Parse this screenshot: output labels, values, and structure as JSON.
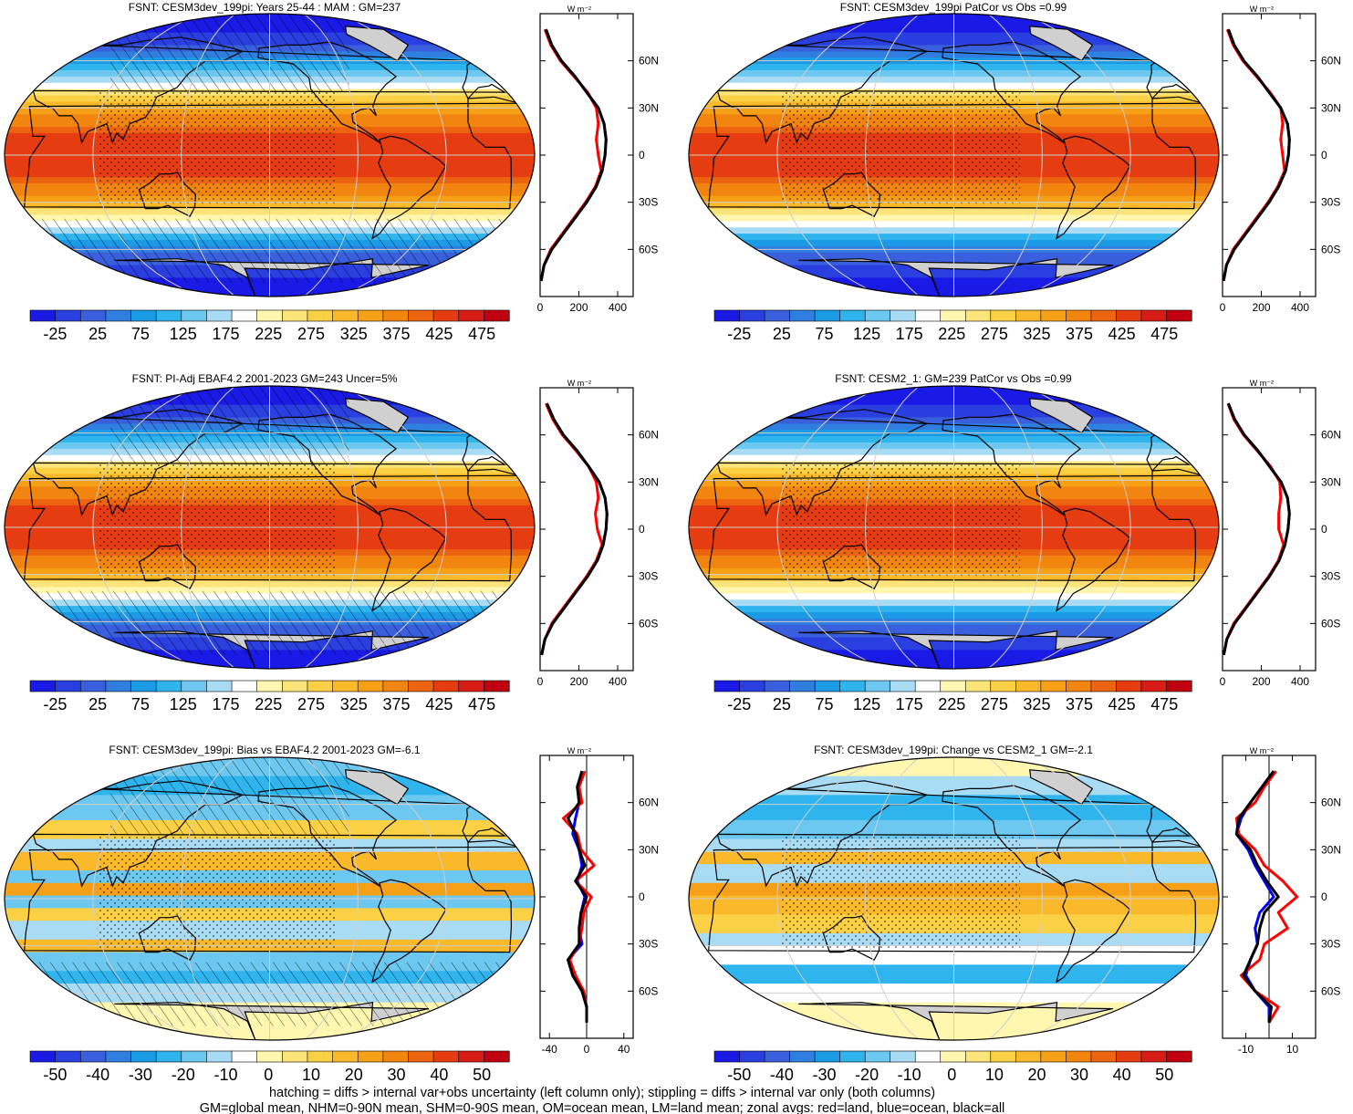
{
  "panels": [
    {
      "title": "FSNT: CESM3dev_199pi: Years 25-44 : MAM : GM=237",
      "colorbar_labels": [
        "-25",
        "25",
        "75",
        "125",
        "175",
        "225",
        "275",
        "325",
        "375",
        "425",
        "475"
      ],
      "colorbar_min": -50,
      "colorbar_max": 500,
      "hatching": true,
      "zonal": {
        "unit": "W m⁻²",
        "x_ticks": [
          "0",
          "200",
          "400"
        ],
        "x_values": [
          0,
          200,
          400
        ],
        "xlim": [
          0,
          480
        ],
        "y_labels": [
          "60N",
          "30N",
          "0",
          "30S",
          "60S"
        ]
      }
    },
    {
      "title": "FSNT: CESM3dev_199pi PatCor vs Obs =0.99",
      "colorbar_labels": [
        "-25",
        "25",
        "75",
        "125",
        "175",
        "225",
        "275",
        "325",
        "375",
        "425",
        "475"
      ],
      "colorbar_min": -50,
      "colorbar_max": 500,
      "hatching": false,
      "zonal": {
        "unit": "W m⁻²",
        "x_ticks": [
          "0",
          "200",
          "400"
        ],
        "x_values": [
          0,
          200,
          400
        ],
        "xlim": [
          0,
          480
        ],
        "y_labels": [
          "60N",
          "30N",
          "0",
          "30S",
          "60S"
        ]
      }
    },
    {
      "title": "FSNT: PI-Adj EBAF4.2 2001-2023 GM=243 Uncer=5%",
      "colorbar_labels": [
        "-25",
        "25",
        "75",
        "125",
        "175",
        "225",
        "275",
        "325",
        "375",
        "425",
        "475"
      ],
      "colorbar_min": -50,
      "colorbar_max": 500,
      "hatching": true,
      "zonal": {
        "unit": "W m⁻²",
        "x_ticks": [
          "0",
          "200",
          "400"
        ],
        "x_values": [
          0,
          200,
          400
        ],
        "xlim": [
          0,
          480
        ],
        "y_labels": [
          "60N",
          "30N",
          "0",
          "30S",
          "60S"
        ]
      }
    },
    {
      "title": "FSNT: CESM2_1: GM=239 PatCor vs Obs =0.99",
      "colorbar_labels": [
        "-25",
        "25",
        "75",
        "125",
        "175",
        "225",
        "275",
        "325",
        "375",
        "425",
        "475"
      ],
      "colorbar_min": -50,
      "colorbar_max": 500,
      "hatching": false,
      "zonal": {
        "unit": "W m⁻²",
        "x_ticks": [
          "0",
          "200",
          "400"
        ],
        "x_values": [
          0,
          200,
          400
        ],
        "xlim": [
          0,
          480
        ],
        "y_labels": [
          "60N",
          "30N",
          "0",
          "30S",
          "60S"
        ]
      }
    },
    {
      "title": "FSNT: CESM3dev_199pi: Bias vs EBAF4.2 2001-2023 GM=-6.1",
      "colorbar_labels": [
        "-50",
        "-40",
        "-30",
        "-20",
        "-10",
        "0",
        "10",
        "20",
        "30",
        "40",
        "50"
      ],
      "colorbar_min": -55,
      "colorbar_max": 55,
      "hatching": true,
      "zonal": {
        "unit": "W m⁻²",
        "x_ticks": [
          "-40",
          "0",
          "40"
        ],
        "x_values": [
          -40,
          0,
          40
        ],
        "xlim": [
          -50,
          50
        ],
        "y_labels": [
          "60N",
          "30N",
          "0",
          "30S",
          "60S"
        ]
      }
    },
    {
      "title": "FSNT: CESM3dev_199pi: Change vs CESM2_1 GM=-2.1",
      "colorbar_labels": [
        "-50",
        "-40",
        "-30",
        "-20",
        "-10",
        "0",
        "10",
        "20",
        "30",
        "40",
        "50"
      ],
      "colorbar_min": -55,
      "colorbar_max": 55,
      "hatching": false,
      "zonal": {
        "unit": "W m⁻²",
        "x_ticks": [
          "-10",
          "10"
        ],
        "x_values": [
          -10,
          10
        ],
        "xlim": [
          -20,
          20
        ],
        "y_labels": [
          "60N",
          "30N",
          "0",
          "30S",
          "60S"
        ]
      }
    }
  ],
  "colors": {
    "palette": [
      "#1a1ae6",
      "#2a3fe0",
      "#3a5fdc",
      "#2f7ee0",
      "#1b9ae6",
      "#2fb4ee",
      "#6cc8f0",
      "#a8dcf4",
      "#ffffff",
      "#fff6b0",
      "#fde47a",
      "#fbd045",
      "#f9b92a",
      "#f6a018",
      "#f28410",
      "#ec6410",
      "#e63c12",
      "#d81c16",
      "#c00010"
    ],
    "land": "#d0d0d0",
    "zonal_land": "#ff0000",
    "zonal_ocean": "#0000ff",
    "zonal_all": "#000000"
  },
  "chart_data": [
    {
      "type": "line",
      "title": "FSNT: CESM3dev_199pi: Years 25-44 : MAM : GM=237",
      "ylabel": "",
      "x_unit": "W m-2",
      "lat": [
        80,
        70,
        60,
        50,
        40,
        30,
        20,
        10,
        0,
        -10,
        -20,
        -30,
        -40,
        -50,
        -60,
        -70,
        -80
      ],
      "series": [
        {
          "values": [
            30,
            60,
            110,
            180,
            240,
            300,
            330,
            340,
            335,
            320,
            290,
            240,
            180,
            120,
            60,
            20,
            5
          ]
        },
        {
          "values": [
            25,
            55,
            105,
            175,
            245,
            290,
            300,
            290,
            300,
            315,
            285,
            235,
            175,
            115,
            55,
            20,
            5
          ]
        },
        {
          "values": [
            30,
            60,
            110,
            180,
            240,
            300,
            330,
            340,
            335,
            320,
            290,
            240,
            180,
            120,
            60,
            20,
            5
          ]
        }
      ]
    },
    {
      "type": "line",
      "title": "FSNT: CESM3dev_199pi PatCor vs Obs =0.99",
      "lat": [
        80,
        70,
        60,
        50,
        40,
        30,
        20,
        10,
        0,
        -10,
        -20,
        -30,
        -40,
        -50,
        -60,
        -70,
        -80
      ],
      "series": [
        {
          "values": [
            30,
            60,
            110,
            180,
            240,
            300,
            335,
            345,
            340,
            325,
            290,
            240,
            180,
            120,
            60,
            20,
            5
          ]
        },
        {
          "values": [
            25,
            55,
            105,
            175,
            245,
            300,
            310,
            300,
            310,
            320,
            285,
            235,
            175,
            115,
            55,
            20,
            5
          ]
        },
        {
          "values": [
            30,
            60,
            110,
            180,
            240,
            300,
            335,
            345,
            340,
            325,
            290,
            240,
            180,
            120,
            60,
            20,
            5
          ]
        }
      ]
    },
    {
      "type": "line",
      "title": "FSNT: PI-Adj EBAF4.2 2001-2023 GM=243 Uncer=5%",
      "lat": [
        80,
        70,
        60,
        50,
        40,
        30,
        20,
        10,
        0,
        -10,
        -20,
        -30,
        -40,
        -50,
        -60,
        -70,
        -80
      ],
      "series": [
        {
          "values": [
            35,
            70,
            120,
            190,
            250,
            305,
            335,
            345,
            340,
            325,
            295,
            245,
            185,
            125,
            65,
            25,
            8
          ]
        },
        {
          "values": [
            30,
            65,
            115,
            185,
            250,
            290,
            300,
            285,
            295,
            320,
            290,
            240,
            180,
            120,
            60,
            25,
            8
          ]
        },
        {
          "values": [
            35,
            70,
            120,
            190,
            250,
            305,
            335,
            345,
            340,
            325,
            295,
            245,
            185,
            125,
            65,
            25,
            8
          ]
        }
      ]
    },
    {
      "type": "line",
      "title": "FSNT: CESM2_1: GM=239 PatCor vs Obs =0.99",
      "lat": [
        80,
        70,
        60,
        50,
        40,
        30,
        20,
        10,
        0,
        -10,
        -20,
        -30,
        -40,
        -50,
        -60,
        -70,
        -80
      ],
      "series": [
        {
          "values": [
            30,
            62,
            112,
            182,
            242,
            302,
            335,
            345,
            338,
            322,
            292,
            242,
            182,
            122,
            62,
            22,
            6
          ]
        },
        {
          "values": [
            28,
            58,
            108,
            178,
            248,
            295,
            300,
            290,
            290,
            315,
            288,
            238,
            178,
            118,
            58,
            22,
            6
          ]
        },
        {
          "values": [
            30,
            62,
            112,
            182,
            242,
            302,
            335,
            345,
            338,
            322,
            292,
            242,
            182,
            122,
            62,
            22,
            6
          ]
        }
      ]
    },
    {
      "type": "line",
      "title": "FSNT: CESM3dev_199pi: Bias vs EBAF4.2 2001-2023 GM=-6.1",
      "lat": [
        80,
        70,
        60,
        50,
        40,
        30,
        20,
        10,
        0,
        -10,
        -20,
        -30,
        -40,
        -50,
        -60,
        -70,
        -80
      ],
      "series": [
        {
          "values": [
            -5,
            -10,
            -8,
            -12,
            -15,
            -8,
            -5,
            -10,
            -2,
            -6,
            -8,
            -5,
            -20,
            -15,
            -5,
            0,
            0
          ]
        },
        {
          "values": [
            -2,
            -8,
            -5,
            -25,
            -10,
            -6,
            8,
            -12,
            5,
            -3,
            -5,
            -8,
            -18,
            -12,
            -3,
            0,
            0
          ]
        },
        {
          "values": [
            -5,
            -10,
            -8,
            -20,
            -12,
            -8,
            -2,
            -12,
            0,
            -6,
            -8,
            -8,
            -20,
            -15,
            -5,
            0,
            0
          ]
        }
      ]
    },
    {
      "type": "line",
      "title": "FSNT: CESM3dev_199pi: Change vs CESM2_1 GM=-2.1",
      "lat": [
        80,
        70,
        60,
        50,
        40,
        30,
        20,
        10,
        0,
        -10,
        -20,
        -30,
        -40,
        -50,
        -60,
        -70,
        -80
      ],
      "series": [
        {
          "values": [
            2,
            -3,
            -8,
            -12,
            -14,
            -9,
            -6,
            -2,
            2,
            -4,
            -6,
            -5,
            -8,
            -10,
            -6,
            0,
            0
          ]
        },
        {
          "values": [
            3,
            -2,
            -6,
            -14,
            -13,
            -6,
            -2,
            6,
            12,
            4,
            8,
            -2,
            -4,
            -12,
            -6,
            4,
            0
          ]
        },
        {
          "values": [
            2,
            -3,
            -8,
            -13,
            -14,
            -8,
            -5,
            -1,
            4,
            -2,
            -4,
            -5,
            -8,
            -11,
            -6,
            1,
            0
          ]
        }
      ]
    }
  ],
  "footer": {
    "line1": "hatching = diffs > internal var+obs uncertainty (left column only); stippling = diffs > internal var only (both columns)",
    "line2": "GM=global mean, NHM=0-90N mean, SHM=0-90S mean, OM=ocean mean, LM=land mean; zonal avgs: red=land, blue=ocean, black=all"
  }
}
